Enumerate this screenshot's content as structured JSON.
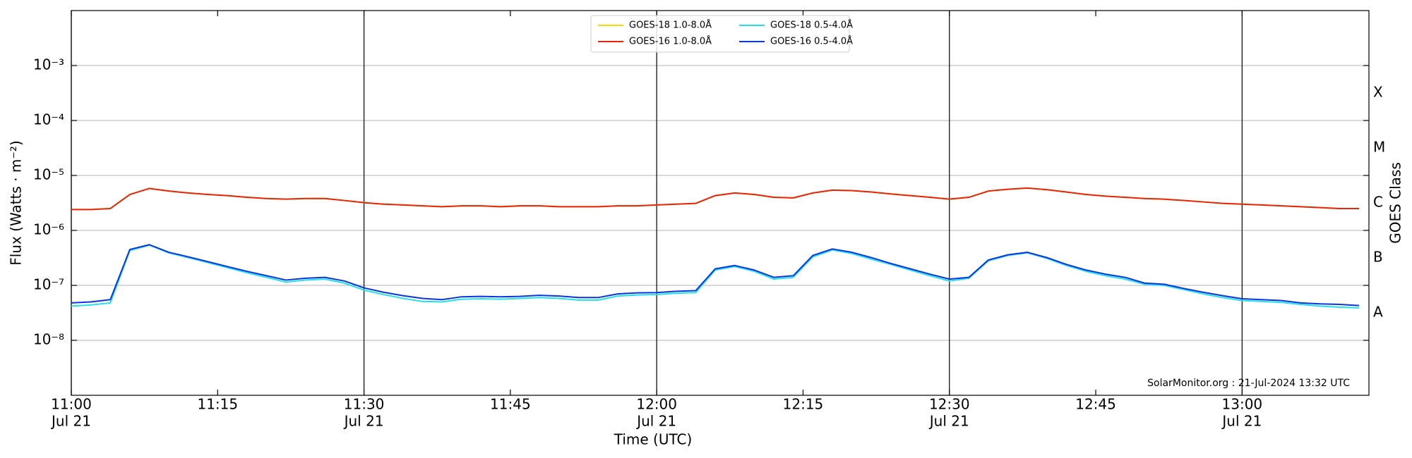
{
  "chart_data": {
    "type": "line",
    "xlabel": "Time (UTC)",
    "ylabel": "Flux (Watts · m⁻²)",
    "y2label": "GOES Class",
    "annotation": "SolarMonitor.org : 21-Jul-2024 13:32 UTC",
    "log_y": true,
    "grid": true,
    "legend": "upper center",
    "xlim": [
      "11:00",
      "13:13"
    ],
    "xticks": [
      {
        "value": "11:00",
        "label": "11:00",
        "date": "Jul 21"
      },
      "11:15",
      {
        "value": "11:30",
        "label": "11:30",
        "date": "Jul 21"
      },
      "11:45",
      {
        "value": "12:00",
        "label": "12:00",
        "date": "Jul 21"
      },
      "12:15",
      {
        "value": "12:30",
        "label": "12:30",
        "date": "Jul 21"
      },
      "12:45",
      {
        "value": "13:00",
        "label": "13:00",
        "date": "Jul 21"
      }
    ],
    "ylim": [
      1e-09,
      0.01
    ],
    "yticks": [
      {
        "value": 1e-08,
        "label": "10⁻⁸"
      },
      {
        "value": 1e-07,
        "label": "10⁻⁷"
      },
      {
        "value": 1e-06,
        "label": "10⁻⁶"
      },
      {
        "value": 1e-05,
        "label": "10⁻⁵"
      },
      {
        "value": 0.0001,
        "label": "10⁻⁴"
      },
      {
        "value": 0.001,
        "label": "10⁻³"
      }
    ],
    "y2lim": [
      1e-09,
      0.01
    ],
    "y2ticks": [
      {
        "value": 3.16e-08,
        "label": "A"
      },
      {
        "value": 3.16e-07,
        "label": "B"
      },
      {
        "value": 3.16e-06,
        "label": "C"
      },
      {
        "value": 3.16e-05,
        "label": "M"
      },
      {
        "value": 0.000316,
        "label": "X"
      }
    ],
    "x": [
      "11:00",
      "11:02",
      "11:04",
      "11:06",
      "11:08",
      "11:10",
      "11:12",
      "11:14",
      "11:16",
      "11:18",
      "11:20",
      "11:22",
      "11:24",
      "11:26",
      "11:28",
      "11:30",
      "11:32",
      "11:34",
      "11:36",
      "11:38",
      "11:40",
      "11:42",
      "11:44",
      "11:46",
      "11:48",
      "11:50",
      "11:52",
      "11:54",
      "11:56",
      "11:58",
      "12:00",
      "12:02",
      "12:04",
      "12:06",
      "12:08",
      "12:10",
      "12:12",
      "12:14",
      "12:16",
      "12:18",
      "12:20",
      "12:22",
      "12:24",
      "12:26",
      "12:28",
      "12:30",
      "12:32",
      "12:34",
      "12:36",
      "12:38",
      "12:40",
      "12:42",
      "12:44",
      "12:46",
      "12:48",
      "12:50",
      "12:52",
      "12:54",
      "12:56",
      "12:58",
      "13:00",
      "13:02",
      "13:04",
      "13:06",
      "13:08",
      "13:10",
      "13:12"
    ],
    "series": [
      {
        "name": "GOES-18 1.0-8.0Å",
        "color": "#ffd700",
        "values": [
          2.4e-06,
          2.4e-06,
          2.5e-06,
          4.5e-06,
          5.8e-06,
          5.2e-06,
          4.8e-06,
          4.5e-06,
          4.3e-06,
          4e-06,
          3.8e-06,
          3.7e-06,
          3.8e-06,
          3.8e-06,
          3.5e-06,
          3.2e-06,
          3e-06,
          2.9e-06,
          2.8e-06,
          2.7e-06,
          2.8e-06,
          2.8e-06,
          2.7e-06,
          2.8e-06,
          2.8e-06,
          2.7e-06,
          2.7e-06,
          2.7e-06,
          2.8e-06,
          2.8e-06,
          2.9e-06,
          3e-06,
          3.1e-06,
          4.3e-06,
          4.8e-06,
          4.5e-06,
          4e-06,
          3.9e-06,
          4.8e-06,
          5.4e-06,
          5.3e-06,
          5e-06,
          4.6e-06,
          4.3e-06,
          4e-06,
          3.7e-06,
          4e-06,
          5.2e-06,
          5.6e-06,
          5.9e-06,
          5.5e-06,
          5e-06,
          4.5e-06,
          4.2e-06,
          4e-06,
          3.8e-06,
          3.7e-06,
          3.5e-06,
          3.3e-06,
          3.1e-06,
          3e-06,
          2.9e-06,
          2.8e-06,
          2.7e-06,
          2.6e-06,
          2.5e-06,
          2.5e-06
        ]
      },
      {
        "name": "GOES-16 1.0-8.0Å",
        "color": "#e8250c",
        "values": [
          2.4e-06,
          2.4e-06,
          2.5e-06,
          4.5e-06,
          5.8e-06,
          5.2e-06,
          4.8e-06,
          4.5e-06,
          4.3e-06,
          4e-06,
          3.8e-06,
          3.7e-06,
          3.8e-06,
          3.8e-06,
          3.5e-06,
          3.2e-06,
          3e-06,
          2.9e-06,
          2.8e-06,
          2.7e-06,
          2.8e-06,
          2.8e-06,
          2.7e-06,
          2.8e-06,
          2.8e-06,
          2.7e-06,
          2.7e-06,
          2.7e-06,
          2.8e-06,
          2.8e-06,
          2.9e-06,
          3e-06,
          3.1e-06,
          4.3e-06,
          4.8e-06,
          4.5e-06,
          4e-06,
          3.9e-06,
          4.8e-06,
          5.4e-06,
          5.3e-06,
          5e-06,
          4.6e-06,
          4.3e-06,
          4e-06,
          3.7e-06,
          4e-06,
          5.2e-06,
          5.6e-06,
          5.9e-06,
          5.5e-06,
          5e-06,
          4.5e-06,
          4.2e-06,
          4e-06,
          3.8e-06,
          3.7e-06,
          3.5e-06,
          3.3e-06,
          3.1e-06,
          3e-06,
          2.9e-06,
          2.8e-06,
          2.7e-06,
          2.6e-06,
          2.5e-06,
          2.5e-06
        ]
      },
      {
        "name": "GOES-18 0.5-4.0Å",
        "color": "#22e0f0",
        "values": [
          4.2e-08,
          4.4e-08,
          4.8e-08,
          4.3e-07,
          5.4e-07,
          3.9e-07,
          3.2e-07,
          2.6e-07,
          2.1e-07,
          1.7e-07,
          1.4e-07,
          1.15e-07,
          1.25e-07,
          1.3e-07,
          1.1e-07,
          8.2e-08,
          6.8e-08,
          5.8e-08,
          5.1e-08,
          5e-08,
          5.6e-08,
          5.7e-08,
          5.6e-08,
          5.8e-08,
          6e-08,
          5.8e-08,
          5.4e-08,
          5.4e-08,
          6.4e-08,
          6.7e-08,
          6.8e-08,
          7.2e-08,
          7.4e-08,
          1.9e-07,
          2.2e-07,
          1.8e-07,
          1.3e-07,
          1.4e-07,
          3.3e-07,
          4.4e-07,
          3.8e-07,
          3e-07,
          2.4e-07,
          1.9e-07,
          1.5e-07,
          1.2e-07,
          1.35e-07,
          2.8e-07,
          3.5e-07,
          3.9e-07,
          3.1e-07,
          2.3e-07,
          1.8e-07,
          1.5e-07,
          1.3e-07,
          1.05e-07,
          1e-07,
          8.4e-08,
          7e-08,
          6e-08,
          5.3e-08,
          5.1e-08,
          4.9e-08,
          4.5e-08,
          4.2e-08,
          4e-08,
          3.9e-08
        ]
      },
      {
        "name": "GOES-16 0.5-4.0Å",
        "color": "#0a35e0",
        "values": [
          4.8e-08,
          5e-08,
          5.5e-08,
          4.5e-07,
          5.5e-07,
          4e-07,
          3.3e-07,
          2.7e-07,
          2.2e-07,
          1.8e-07,
          1.5e-07,
          1.25e-07,
          1.35e-07,
          1.4e-07,
          1.2e-07,
          9e-08,
          7.5e-08,
          6.5e-08,
          5.8e-08,
          5.5e-08,
          6.2e-08,
          6.3e-08,
          6.2e-08,
          6.3e-08,
          6.6e-08,
          6.4e-08,
          6e-08,
          6e-08,
          7e-08,
          7.3e-08,
          7.4e-08,
          7.8e-08,
          8e-08,
          2e-07,
          2.3e-07,
          1.9e-07,
          1.4e-07,
          1.5e-07,
          3.5e-07,
          4.6e-07,
          4e-07,
          3.2e-07,
          2.5e-07,
          2e-07,
          1.6e-07,
          1.3e-07,
          1.4e-07,
          2.9e-07,
          3.6e-07,
          4e-07,
          3.2e-07,
          2.4e-07,
          1.9e-07,
          1.6e-07,
          1.4e-07,
          1.1e-07,
          1.05e-07,
          8.8e-08,
          7.5e-08,
          6.5e-08,
          5.7e-08,
          5.5e-08,
          5.3e-08,
          4.8e-08,
          4.6e-08,
          4.5e-08,
          4.3e-08
        ]
      }
    ]
  }
}
